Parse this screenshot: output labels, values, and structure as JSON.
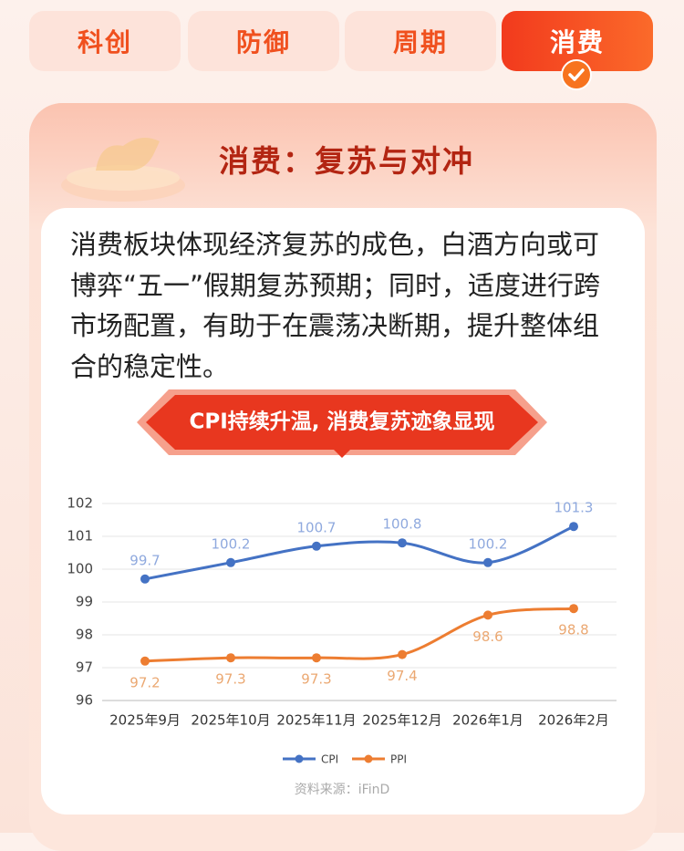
{
  "tabs": [
    "科创",
    "防御",
    "周期",
    "消费"
  ],
  "section_title": "消费：复苏与对冲",
  "body": "消费板块体现经济复苏的成色，白酒方向或可博弈“五一”假期复苏预期；同时，适度进行跨市场配置，有助于在震荡决断期，提升整体组合的稳定性。",
  "banner": "CPI持续升温, 消费复苏迹象显现",
  "chart_data": {
    "type": "line",
    "categories": [
      "2025年9月",
      "2025年10月",
      "2025年11月",
      "2025年12月",
      "2026年1月",
      "2026年2月"
    ],
    "series": [
      {
        "name": "CPI",
        "color": "#4472c4",
        "label_color": "#8fa9de",
        "label_side": "above",
        "values": [
          99.7,
          100.2,
          100.7,
          100.8,
          100.2,
          101.3
        ]
      },
      {
        "name": "PPI",
        "color": "#ed7d31",
        "label_color": "#eba872",
        "label_side": "below",
        "values": [
          97.2,
          97.3,
          97.3,
          97.4,
          98.6,
          98.8
        ]
      }
    ],
    "ylim": [
      96,
      102
    ],
    "yticks": [
      96,
      97,
      98,
      99,
      100,
      101,
      102
    ],
    "grid": true,
    "smooth": true,
    "legend": "bottom",
    "source": "资料来源：iFinD"
  }
}
